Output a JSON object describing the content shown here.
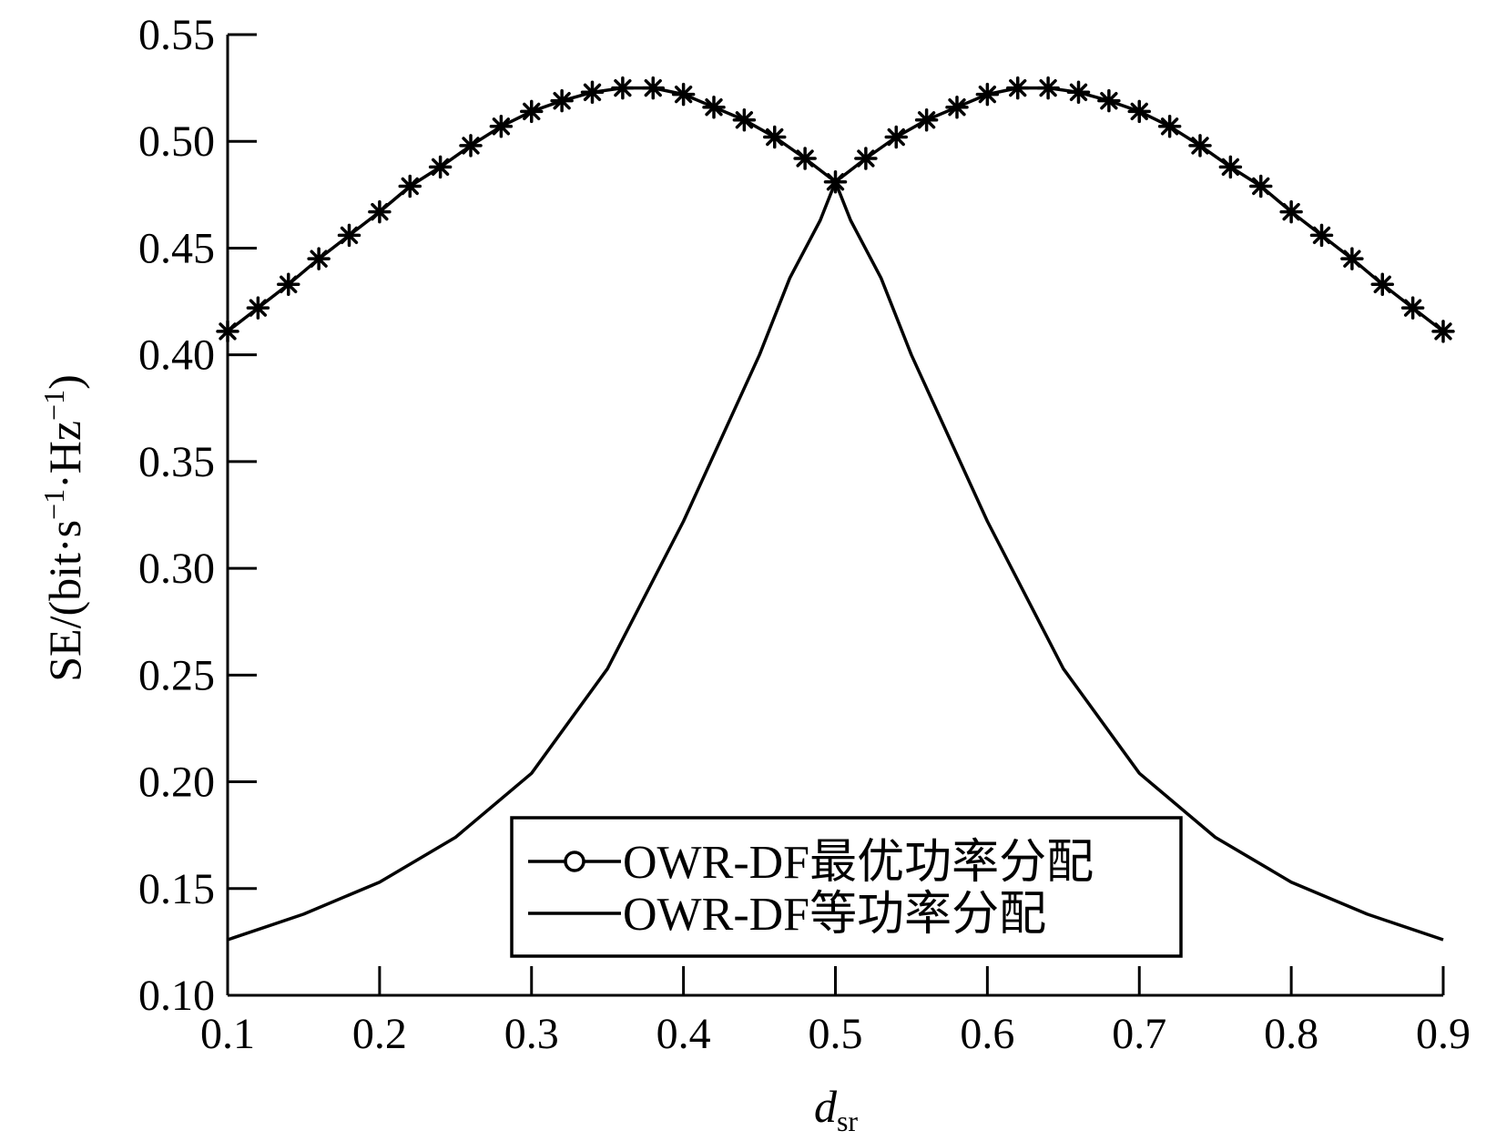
{
  "chart_data": {
    "type": "line",
    "title": "",
    "xlabel_main": "d",
    "xlabel_sub": "sr",
    "ylabel_parts": [
      "SE/(bit·s",
      "−1",
      "·Hz",
      "−1",
      ")"
    ],
    "xlim": [
      0.1,
      0.9
    ],
    "ylim": [
      0.1,
      0.55
    ],
    "xticks": [
      0.1,
      0.2,
      0.3,
      0.4,
      0.5,
      0.6,
      0.7,
      0.8,
      0.9
    ],
    "xtick_labels": [
      "0.1",
      "0.2",
      "0.3",
      "0.4",
      "0.5",
      "0.6",
      "0.7",
      "0.8",
      "0.9"
    ],
    "yticks": [
      0.1,
      0.15,
      0.2,
      0.25,
      0.3,
      0.35,
      0.4,
      0.45,
      0.5,
      0.55
    ],
    "ytick_labels": [
      "0.10",
      "0.15",
      "0.20",
      "0.25",
      "0.30",
      "0.35",
      "0.40",
      "0.45",
      "0.50",
      "0.55"
    ],
    "grid": false,
    "legend_position": "bottom-center",
    "series": [
      {
        "name": "OWR-DF最优功率分配",
        "marker": "asterisk",
        "legend_marker": "circle",
        "color": "#000000",
        "x": [
          0.1,
          0.12,
          0.14,
          0.16,
          0.18,
          0.2,
          0.22,
          0.24,
          0.26,
          0.28,
          0.3,
          0.32,
          0.34,
          0.36,
          0.38,
          0.4,
          0.42,
          0.44,
          0.46,
          0.48,
          0.5,
          0.52,
          0.54,
          0.56,
          0.58,
          0.6,
          0.62,
          0.64,
          0.66,
          0.68,
          0.7,
          0.72,
          0.74,
          0.76,
          0.78,
          0.8,
          0.82,
          0.84,
          0.86,
          0.88,
          0.9
        ],
        "y": [
          0.411,
          0.422,
          0.433,
          0.445,
          0.456,
          0.467,
          0.479,
          0.488,
          0.498,
          0.507,
          0.514,
          0.519,
          0.523,
          0.525,
          0.525,
          0.522,
          0.516,
          0.51,
          0.502,
          0.492,
          0.481,
          0.492,
          0.502,
          0.51,
          0.516,
          0.522,
          0.525,
          0.525,
          0.523,
          0.519,
          0.514,
          0.507,
          0.498,
          0.488,
          0.479,
          0.467,
          0.456,
          0.445,
          0.433,
          0.422,
          0.411
        ]
      },
      {
        "name": "OWR-DF等功率分配",
        "marker": "none",
        "color": "#000000",
        "x": [
          0.1,
          0.15,
          0.2,
          0.25,
          0.3,
          0.35,
          0.4,
          0.45,
          0.47,
          0.49,
          0.5,
          0.51,
          0.53,
          0.55,
          0.6,
          0.65,
          0.7,
          0.75,
          0.8,
          0.85,
          0.9
        ],
        "y": [
          0.126,
          0.138,
          0.153,
          0.174,
          0.204,
          0.253,
          0.322,
          0.4,
          0.436,
          0.463,
          0.481,
          0.463,
          0.436,
          0.4,
          0.322,
          0.253,
          0.204,
          0.174,
          0.153,
          0.138,
          0.126
        ]
      }
    ]
  }
}
